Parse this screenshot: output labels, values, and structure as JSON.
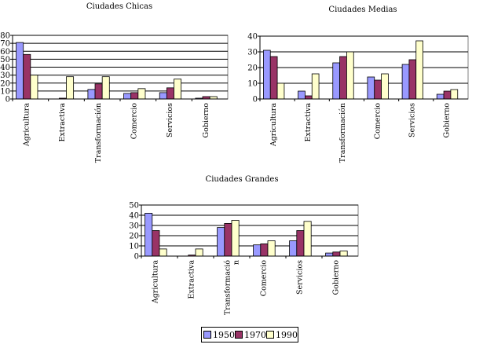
{
  "colors": {
    "1950": "#9999ff",
    "1970": "#993366",
    "1990": "#ffffcc"
  },
  "legend": {
    "items": [
      "1950",
      "1970",
      "1990"
    ]
  },
  "chart_data": [
    {
      "type": "bar",
      "title": "Ciudades Chicas",
      "categories": [
        "Agricultura",
        "Extractiva",
        "Transformación",
        "Comercio",
        "Servicios",
        "Gobierno"
      ],
      "series": [
        {
          "name": "1950",
          "values": [
            71,
            0,
            12,
            7,
            8,
            1
          ]
        },
        {
          "name": "1970",
          "values": [
            56,
            1,
            19,
            8,
            14,
            3
          ]
        },
        {
          "name": "1990",
          "values": [
            30,
            28,
            28,
            13,
            25,
            3
          ]
        }
      ],
      "ylim": [
        0,
        80
      ],
      "yticks": [
        0,
        10,
        20,
        30,
        40,
        50,
        60,
        70,
        80
      ],
      "legend": "bottom"
    },
    {
      "type": "bar",
      "title": "Ciudades Medias",
      "categories": [
        "Agricultura",
        "Extractiva",
        "Transformación",
        "Comercio",
        "Servicios",
        "Gobierno"
      ],
      "series": [
        {
          "name": "1950",
          "values": [
            31,
            5,
            23,
            14,
            22,
            3
          ]
        },
        {
          "name": "1970",
          "values": [
            27,
            2,
            27,
            12,
            25,
            5
          ]
        },
        {
          "name": "1990",
          "values": [
            10,
            16,
            30,
            16,
            37,
            6
          ]
        }
      ],
      "ylim": [
        0,
        40
      ],
      "yticks": [
        0,
        10,
        20,
        30,
        40
      ],
      "legend": "bottom"
    },
    {
      "type": "bar",
      "title": "Ciudades Grandes",
      "categories": [
        "Agricultura",
        "Extractiva",
        "Transformació\nn",
        "Comercio",
        "Servicios",
        "Gobierno"
      ],
      "series": [
        {
          "name": "1950",
          "values": [
            42,
            0,
            28,
            11,
            15,
            3
          ]
        },
        {
          "name": "1970",
          "values": [
            25,
            1,
            32,
            12,
            25,
            4
          ]
        },
        {
          "name": "1990",
          "values": [
            7,
            7,
            35,
            15,
            34,
            5
          ]
        }
      ],
      "ylim": [
        0,
        50
      ],
      "yticks": [
        0,
        10,
        20,
        30,
        40,
        50
      ],
      "legend": "bottom"
    }
  ]
}
